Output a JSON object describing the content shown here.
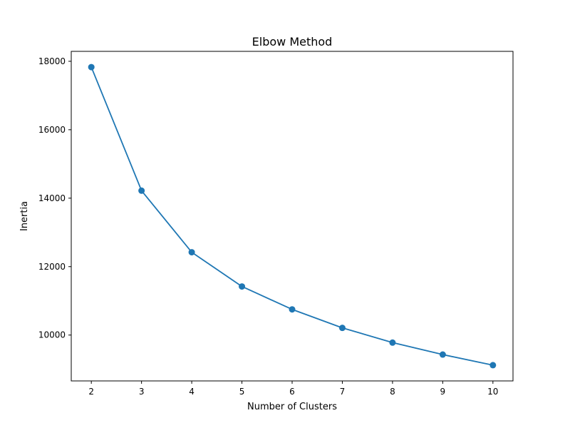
{
  "chart_data": {
    "type": "line",
    "title": "Elbow Method",
    "xlabel": "Number of Clusters",
    "ylabel": "Inertia",
    "x": [
      2,
      3,
      4,
      5,
      6,
      7,
      8,
      9,
      10
    ],
    "series": [
      {
        "values": [
          17830,
          14220,
          12420,
          11420,
          10750,
          10210,
          9780,
          9430,
          9120
        ],
        "color": "#1f77b4",
        "marker": "circle"
      }
    ],
    "xlim": [
      1.6,
      10.4
    ],
    "ylim": [
      8660,
      18290
    ],
    "xticks": [
      "2",
      "3",
      "4",
      "5",
      "6",
      "7",
      "8",
      "9",
      "10"
    ],
    "yticks": [
      "10000",
      "12000",
      "14000",
      "16000",
      "18000"
    ],
    "grid": false,
    "legend": "none"
  }
}
